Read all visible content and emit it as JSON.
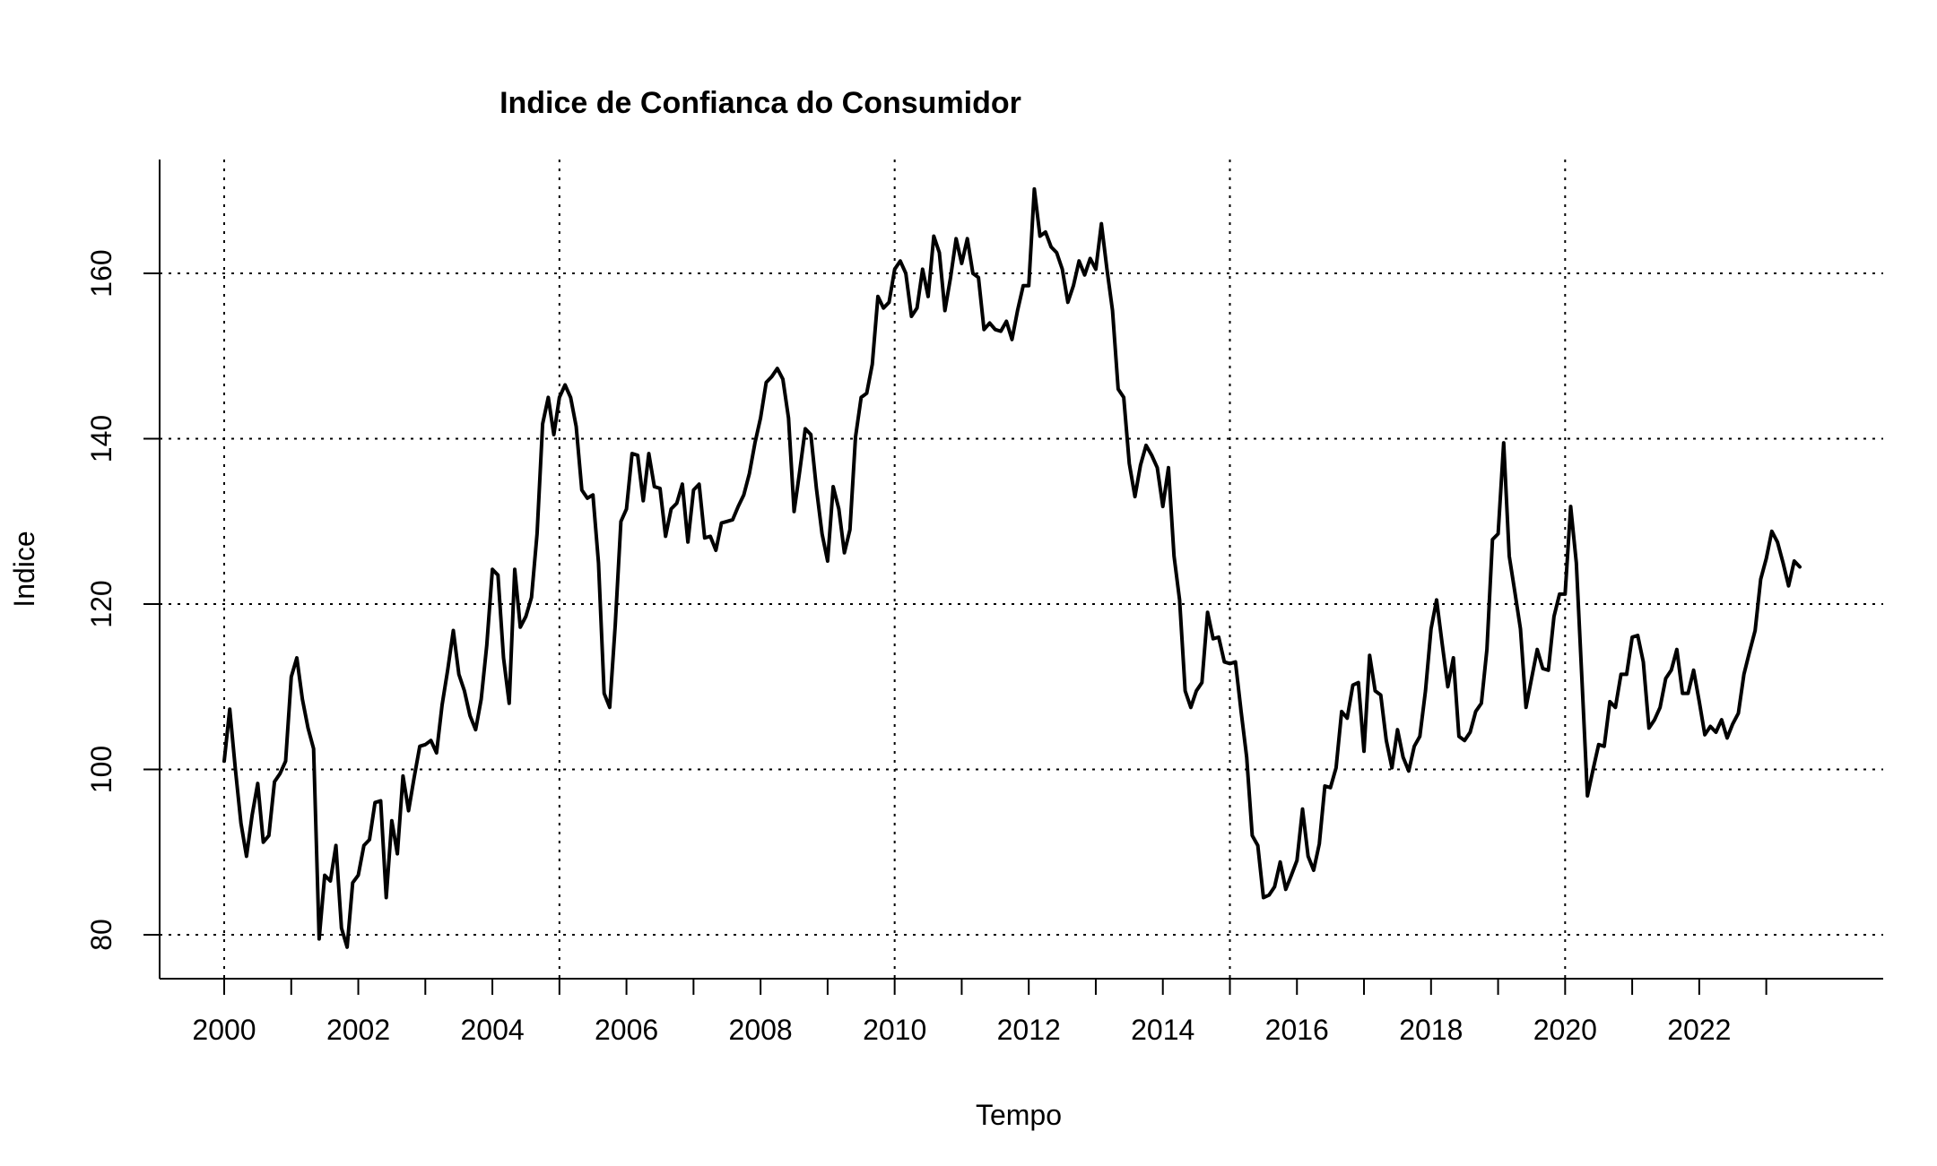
{
  "chart_data": {
    "type": "line",
    "title": "Indice de Confianca do Consumidor",
    "xlabel": "Tempo",
    "ylabel": "Indice",
    "x_start": "2000-01",
    "x_frequency": "monthly",
    "xlim": [
      2000,
      2023.5
    ],
    "ylim": [
      75,
      175
    ],
    "x_ticks": [
      2000,
      2001,
      2002,
      2003,
      2004,
      2005,
      2006,
      2007,
      2008,
      2009,
      2010,
      2011,
      2012,
      2013,
      2014,
      2015,
      2016,
      2017,
      2018,
      2019,
      2020,
      2021,
      2022,
      2023
    ],
    "x_tick_labels": [
      "2000",
      "",
      "2002",
      "",
      "2004",
      "",
      "2006",
      "",
      "2008",
      "",
      "2010",
      "",
      "2012",
      "",
      "2014",
      "",
      "2016",
      "",
      "2018",
      "",
      "2020",
      "",
      "2022",
      ""
    ],
    "y_ticks": [
      80,
      100,
      120,
      140,
      160
    ],
    "y_tick_labels": [
      "80",
      "100",
      "120",
      "140",
      "160"
    ],
    "grid": {
      "style": "dotted",
      "vertical_at": [
        2000,
        2005,
        2010,
        2015,
        2020
      ],
      "horizontal_at": [
        80,
        100,
        120,
        140,
        160
      ]
    },
    "line_color": "#000000",
    "series": [
      {
        "values": [
          101.0,
          107.3,
          100.0,
          93.5,
          89.5,
          94.5,
          98.3,
          91.2,
          92.0,
          98.5,
          99.5,
          101.0,
          111.2,
          113.5,
          108.5,
          105.0,
          102.5,
          79.5,
          87.2,
          86.5,
          90.8,
          80.8,
          78.5,
          86.3,
          87.2,
          90.8,
          91.5,
          96.0,
          96.2,
          84.5,
          93.8,
          89.8,
          99.2,
          95.0,
          99.0,
          102.8,
          103.0,
          103.5,
          102.0,
          107.8,
          112.0,
          116.8,
          111.5,
          109.5,
          106.5,
          104.8,
          108.5,
          115.0,
          124.2,
          123.5,
          113.5,
          108.0,
          124.2,
          117.2,
          118.5,
          120.8,
          128.5,
          141.8,
          145.0,
          140.5,
          145.0,
          146.5,
          145.0,
          141.5,
          133.8,
          132.8,
          133.2,
          125.0,
          109.2,
          107.5,
          117.5,
          130.0,
          131.5,
          138.2,
          138.0,
          132.5,
          138.2,
          134.2,
          134.0,
          128.2,
          131.5,
          132.2,
          134.5,
          127.5,
          133.8,
          134.5,
          128.0,
          128.2,
          126.5,
          129.8,
          130.0,
          130.2,
          131.8,
          133.2,
          135.8,
          139.5,
          142.5,
          146.8,
          147.5,
          148.5,
          147.2,
          142.5,
          131.2,
          136.0,
          141.2,
          140.5,
          134.0,
          128.5,
          125.2,
          134.2,
          131.5,
          126.2,
          129.0,
          140.2,
          145.0,
          145.5,
          149.0,
          157.2,
          155.8,
          156.5,
          160.5,
          161.5,
          160.0,
          154.8,
          155.8,
          160.5,
          157.2,
          164.5,
          162.5,
          155.5,
          159.5,
          164.2,
          161.2,
          164.2,
          160.0,
          159.5,
          153.2,
          154.0,
          153.2,
          153.0,
          154.2,
          152.0,
          155.5,
          158.5,
          158.5,
          170.2,
          164.5,
          165.0,
          163.2,
          162.5,
          160.5,
          156.5,
          158.5,
          161.5,
          159.8,
          161.8,
          160.5,
          166.0,
          160.5,
          155.5,
          146.0,
          145.0,
          137.0,
          133.0,
          136.8,
          139.2,
          138.0,
          136.5,
          131.8,
          136.5,
          125.8,
          120.5,
          109.5,
          107.5,
          109.5,
          110.5,
          119.0,
          115.8,
          116.0,
          113.0,
          112.8,
          113.0,
          107.0,
          101.5,
          92.0,
          90.8,
          84.5,
          84.8,
          85.8,
          88.8,
          85.5,
          87.2,
          89.0,
          95.2,
          89.5,
          87.8,
          91.0,
          98.0,
          97.8,
          100.2,
          107.0,
          106.2,
          110.2,
          110.5,
          102.2,
          113.8,
          109.5,
          109.0,
          103.5,
          100.2,
          104.8,
          101.5,
          99.8,
          102.8,
          104.0,
          109.5,
          117.0,
          120.5,
          115.2,
          110.0,
          113.5,
          104.0,
          103.5,
          104.5,
          107.0,
          108.0,
          114.5,
          127.8,
          128.5,
          139.5,
          125.8,
          121.5,
          117.0,
          107.5,
          111.0,
          114.5,
          112.2,
          112.0,
          118.5,
          121.2,
          121.2,
          131.8,
          125.0,
          111.0,
          96.8,
          100.0,
          103.0,
          102.8,
          108.2,
          107.5,
          111.5,
          111.5,
          116.0,
          116.2,
          113.0,
          105.0,
          106.0,
          107.5,
          111.0,
          112.0,
          114.5,
          109.2,
          109.2,
          112.0,
          108.2,
          104.2,
          105.2,
          104.5,
          106.0,
          103.8,
          105.5,
          106.8,
          111.5,
          114.2,
          116.8,
          123.0,
          125.5,
          128.8,
          127.5,
          125.0,
          122.2,
          125.2,
          124.5
        ]
      }
    ]
  }
}
